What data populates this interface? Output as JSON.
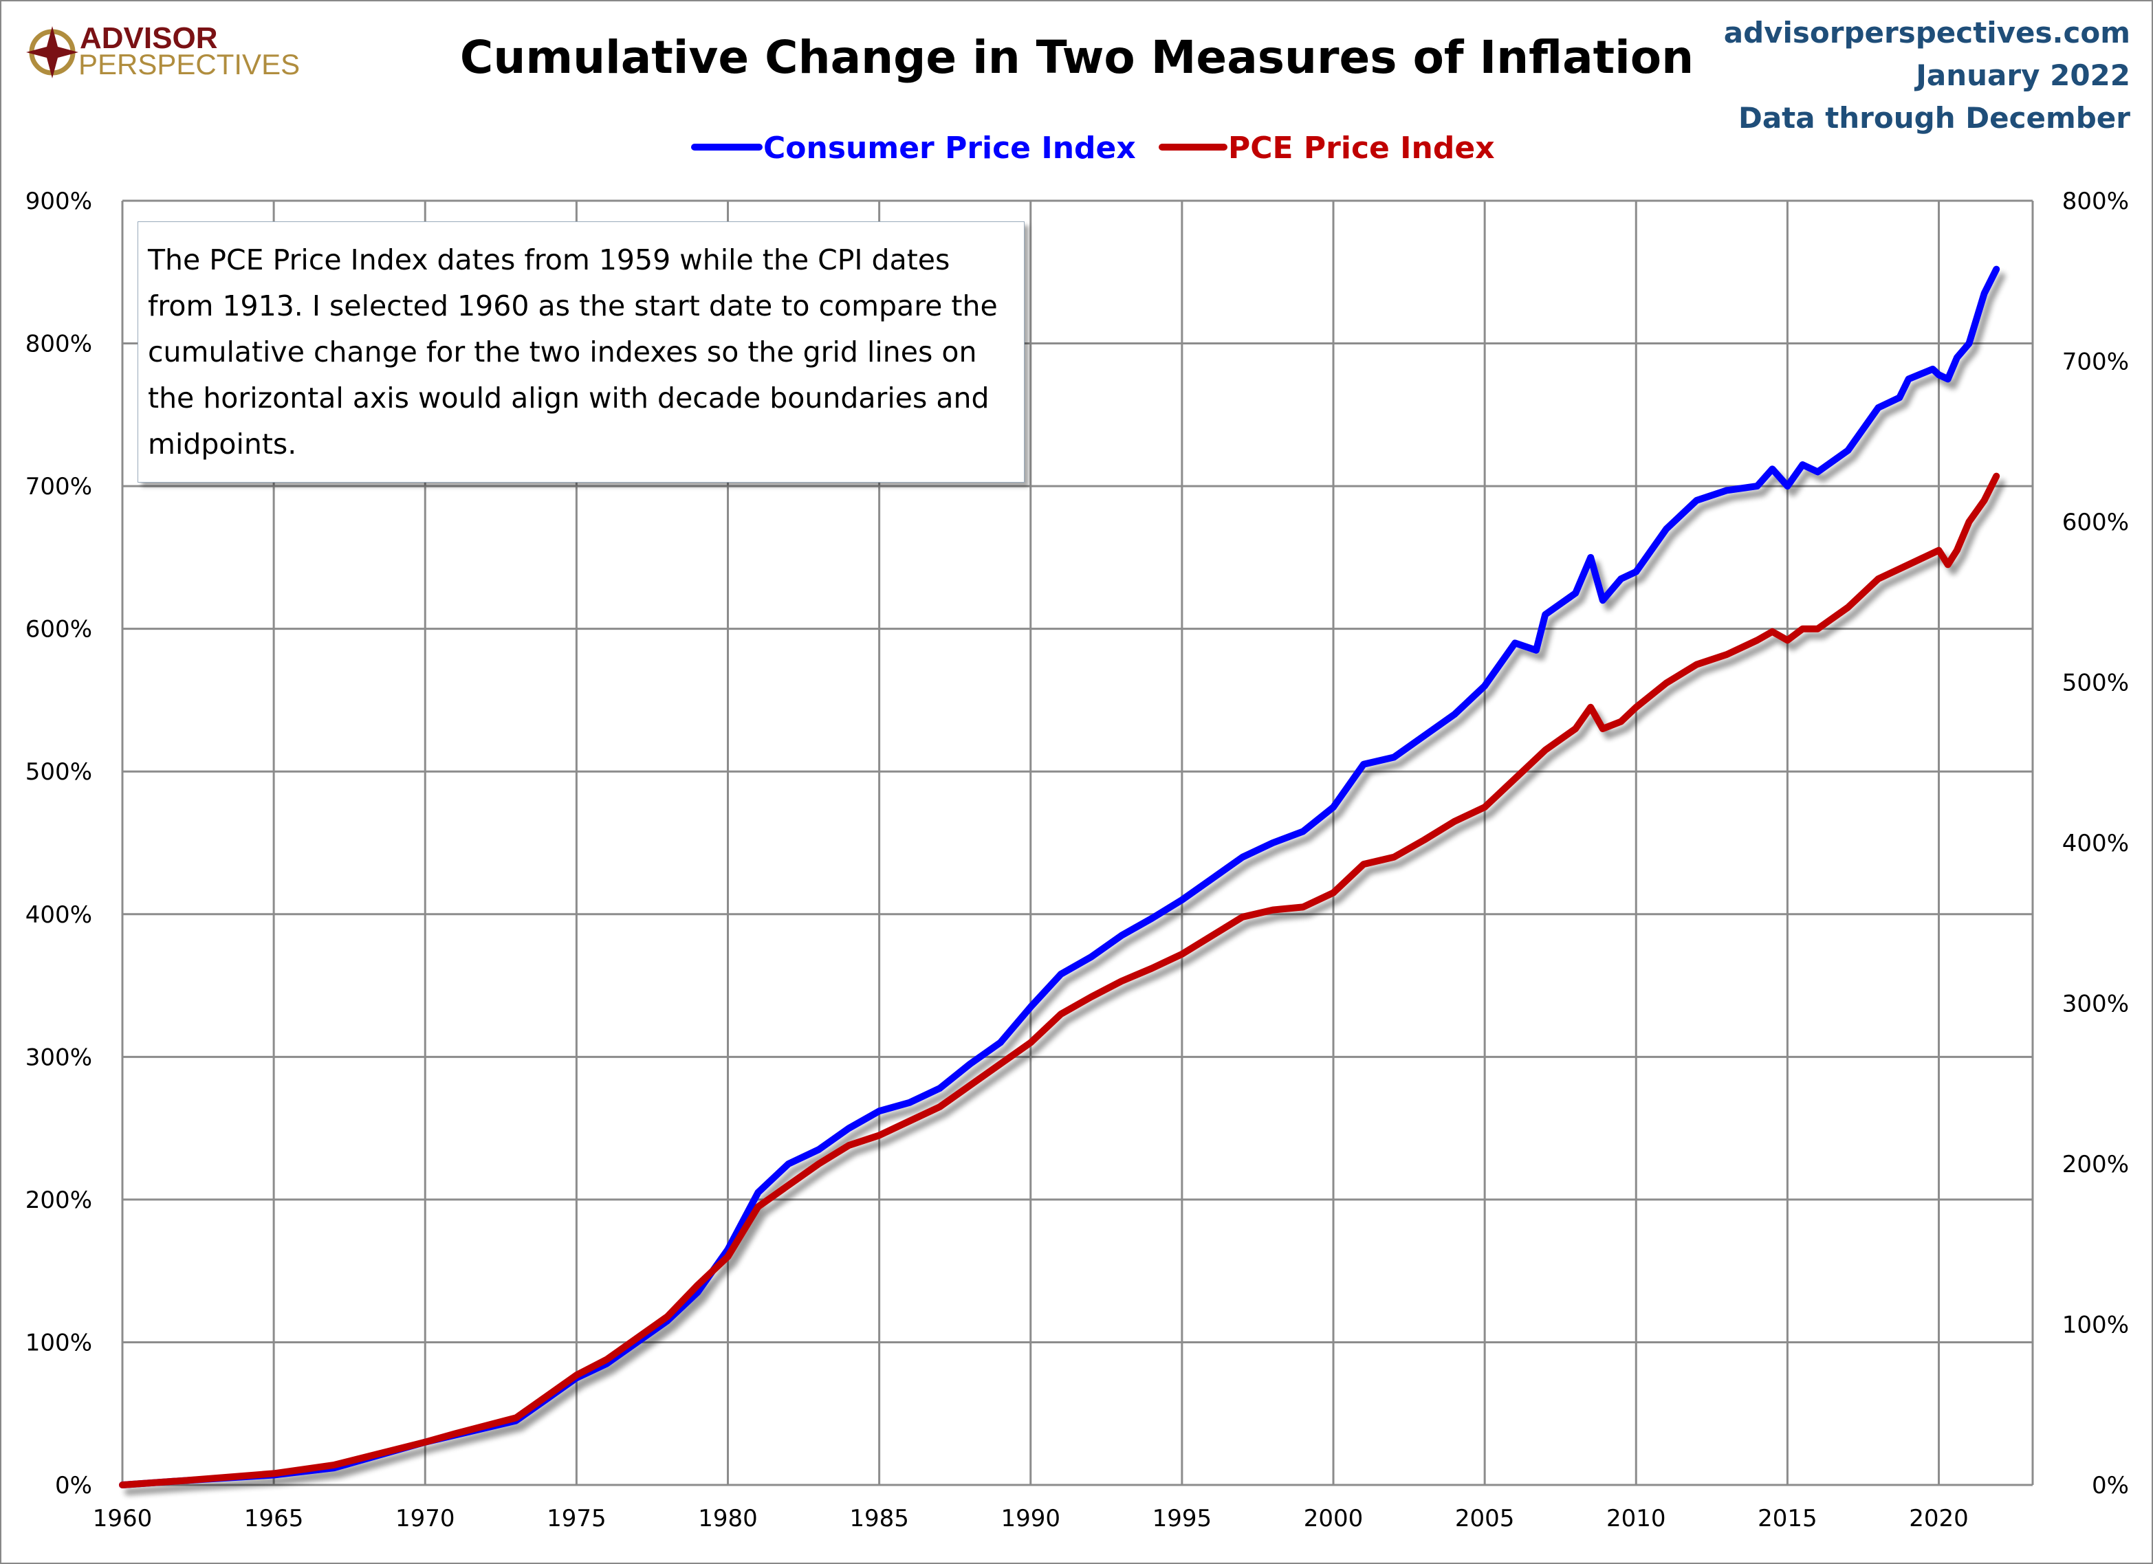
{
  "logo": {
    "line1": "ADVISOR",
    "line2": "PERSPECTIVES",
    "colors": {
      "primary": "#7a1114",
      "gold": "#b08d3e"
    }
  },
  "site": "advisorperspectives.com",
  "date": "January 2022",
  "data_through": "Data through December",
  "note": "The PCE Price Index dates from 1959 while the CPI dates from 1913. I selected 1960 as the start date to compare the cumulative change for the two indexes so the grid lines on the horizontal axis would align with decade boundaries and midpoints.",
  "chart_data": {
    "type": "line",
    "title": "Cumulative Change in Two Measures of Inflation",
    "xlabel": "",
    "ylabel": "",
    "xlim": [
      1960,
      2023.1
    ],
    "ylim": [
      0,
      900
    ],
    "y2lim": [
      0,
      800
    ],
    "grid": true,
    "legend_placement": "top-center",
    "x_ticks": [
      "1960",
      "1965",
      "1970",
      "1975",
      "1980",
      "1985",
      "1990",
      "1995",
      "2000",
      "2005",
      "2010",
      "2015",
      "2020"
    ],
    "y_ticks": [
      "0%",
      "100%",
      "200%",
      "300%",
      "400%",
      "500%",
      "600%",
      "700%",
      "800%",
      "900%"
    ],
    "y2_ticks": [
      "0%",
      "100%",
      "200%",
      "300%",
      "400%",
      "500%",
      "600%",
      "700%",
      "800%"
    ],
    "series": [
      {
        "name": "Consumer Price Index",
        "color": "#0000ff",
        "x": [
          1960,
          1962,
          1965,
          1967,
          1970,
          1971,
          1973,
          1974,
          1975,
          1976,
          1978,
          1979,
          1980,
          1981,
          1982,
          1983,
          1984,
          1985,
          1986,
          1987,
          1988,
          1989,
          1990,
          1991,
          1992,
          1993,
          1994,
          1995,
          1996,
          1997,
          1998,
          1999,
          2000,
          2001,
          2002,
          2003,
          2004,
          2005,
          2006,
          2006.7,
          2007,
          2008,
          2008.5,
          2008.9,
          2009.5,
          2010,
          2011,
          2011.5,
          2012,
          2013,
          2014,
          2014.5,
          2015,
          2015.5,
          2016,
          2017,
          2018,
          2018.7,
          2019,
          2019.8,
          2020,
          2020.3,
          2020.6,
          2021,
          2021.5,
          2021.9
        ],
        "y": [
          0,
          3,
          7,
          12,
          30,
          35,
          45,
          60,
          75,
          85,
          115,
          135,
          165,
          205,
          225,
          235,
          250,
          262,
          268,
          278,
          295,
          310,
          335,
          358,
          370,
          385,
          397,
          410,
          425,
          440,
          450,
          458,
          475,
          505,
          510,
          525,
          540,
          560,
          590,
          585,
          610,
          625,
          650,
          620,
          635,
          640,
          670,
          680,
          690,
          697,
          700,
          712,
          700,
          715,
          710,
          725,
          755,
          762,
          775,
          782,
          778,
          775,
          790,
          800,
          835,
          852
        ]
      },
      {
        "name": "PCE Price Index",
        "color": "#c00000",
        "x": [
          1960,
          1962,
          1965,
          1967,
          1970,
          1971,
          1973,
          1974,
          1975,
          1976,
          1978,
          1979,
          1980,
          1981,
          1982,
          1983,
          1984,
          1985,
          1986,
          1987,
          1988,
          1989,
          1990,
          1991,
          1992,
          1993,
          1994,
          1995,
          1996,
          1997,
          1998,
          1999,
          2000,
          2001,
          2002,
          2003,
          2004,
          2005,
          2006,
          2007,
          2008,
          2008.5,
          2008.9,
          2009.5,
          2010,
          2011,
          2012,
          2013,
          2014,
          2014.5,
          2015,
          2015.5,
          2016,
          2017,
          2018,
          2019,
          2020,
          2020.3,
          2020.6,
          2021,
          2021.5,
          2021.9
        ],
        "y": [
          0,
          3,
          8,
          14,
          30,
          36,
          47,
          62,
          77,
          88,
          118,
          140,
          160,
          195,
          210,
          225,
          238,
          245,
          255,
          265,
          280,
          295,
          310,
          330,
          342,
          353,
          362,
          372,
          385,
          398,
          403,
          405,
          415,
          435,
          440,
          452,
          465,
          475,
          495,
          515,
          530,
          545,
          530,
          535,
          545,
          562,
          575,
          582,
          592,
          598,
          592,
          600,
          600,
          615,
          635,
          645,
          655,
          645,
          655,
          675,
          690,
          707
        ]
      }
    ]
  }
}
